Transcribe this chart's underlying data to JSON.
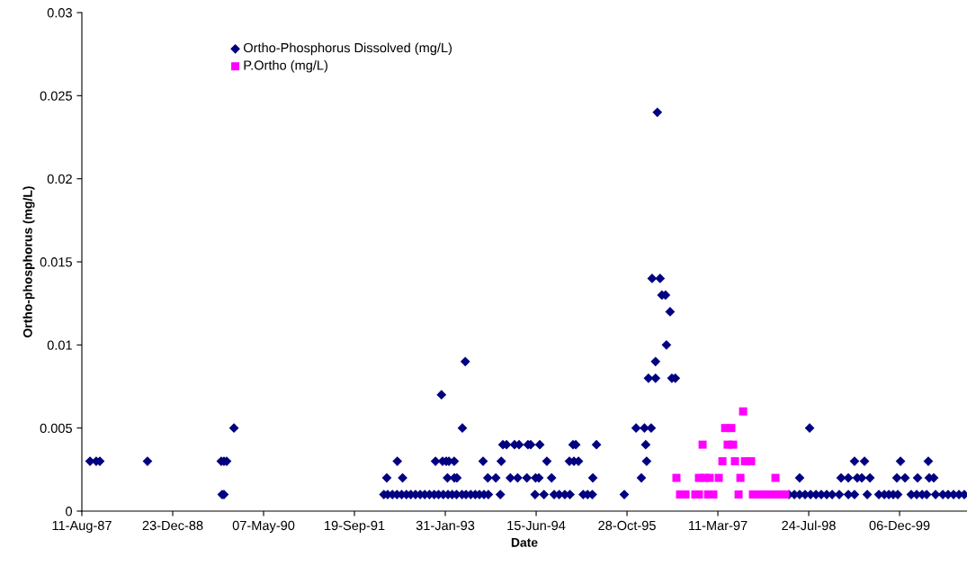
{
  "chart_data": {
    "type": "scatter",
    "xlabel": "Date",
    "ylabel": "Ortho-phosphorus (mg/L)",
    "xlim": [
      "1987-08-11",
      "2000-12-11"
    ],
    "xticks": [
      {
        "value": "1987-08-11",
        "label": "11-Aug-87"
      },
      {
        "value": "1988-12-23",
        "label": "23-Dec-88"
      },
      {
        "value": "1990-05-07",
        "label": "07-May-90"
      },
      {
        "value": "1991-09-19",
        "label": "19-Sep-91"
      },
      {
        "value": "1993-01-31",
        "label": "31-Jan-93"
      },
      {
        "value": "1994-06-15",
        "label": "15-Jun-94"
      },
      {
        "value": "1995-10-28",
        "label": "28-Oct-95"
      },
      {
        "value": "1997-03-11",
        "label": "11-Mar-97"
      },
      {
        "value": "1998-07-24",
        "label": "24-Jul-98"
      },
      {
        "value": "1999-12-06",
        "label": "06-Dec-99"
      }
    ],
    "ylim": [
      0,
      0.03
    ],
    "yticks": [
      0,
      0.005,
      0.01,
      0.015,
      0.02,
      0.025,
      0.03
    ],
    "grid": false,
    "legend": "top left",
    "series": [
      {
        "name": "Ortho-Phosphorus Dissolved (mg/L)",
        "color": "#000080",
        "marker": "diamond",
        "x": [
          "1987-09-25",
          "1987-10-29",
          "1987-11-18",
          "1988-08-06",
          "1989-09-16",
          "1989-10-01",
          "1989-10-16",
          "1989-09-21",
          "1989-10-01",
          "1989-11-25",
          "1992-02-28",
          "1992-03-20",
          "1992-04-15",
          "1992-05-10",
          "1992-06-05",
          "1992-07-01",
          "1992-07-25",
          "1992-08-20",
          "1992-09-15",
          "1992-10-10",
          "1992-11-05",
          "1992-12-01",
          "1992-12-25",
          "1993-01-20",
          "1993-02-15",
          "1993-03-10",
          "1993-04-03",
          "1993-05-03",
          "1993-05-25",
          "1993-06-20",
          "1993-07-15",
          "1993-08-07",
          "1993-09-01",
          "1993-09-25",
          "1993-11-30",
          "1994-06-09",
          "1994-07-28",
          "1994-09-22",
          "1994-10-20",
          "1994-11-20",
          "1994-12-18",
          "1995-03-01",
          "1995-03-25",
          "1995-04-20",
          "1995-10-13",
          "1992-03-15",
          "1992-06-10",
          "1993-02-12",
          "1993-03-22",
          "1993-04-05",
          "1993-09-22",
          "1993-11-05",
          "1994-01-24",
          "1994-03-05",
          "1994-04-25",
          "1994-06-12",
          "1994-06-30",
          "1994-09-08",
          "1995-04-23",
          "1996-01-15",
          "1992-05-12",
          "1992-12-08",
          "1993-01-16",
          "1993-02-05",
          "1993-02-20",
          "1993-03-21",
          "1993-08-27",
          "1993-12-05",
          "1994-08-13",
          "1994-12-15",
          "1995-01-09",
          "1995-02-03",
          "1996-02-13",
          "1993-12-14",
          "1994-01-03",
          "1994-02-16",
          "1994-03-13",
          "1994-05-01",
          "1994-05-16",
          "1994-07-05",
          "1995-01-04",
          "1995-01-19",
          "1995-05-13",
          "1996-02-08",
          "1993-05-05",
          "1995-12-17",
          "1996-02-01",
          "1996-03-09",
          "1993-01-10",
          "1993-05-21",
          "1996-02-23",
          "1996-03-14",
          "1996-04-02",
          "1996-04-02",
          "1996-04-12",
          "1996-04-27",
          "1996-05-07",
          "1996-05-27",
          "1996-06-01",
          "1996-06-21",
          "1996-07-01",
          "1996-07-20",
          "1998-04-06",
          "1998-05-06",
          "1998-06-04",
          "1998-07-04",
          "1998-08-03",
          "1998-09-02",
          "1998-10-01",
          "1998-10-31",
          "1998-11-30",
          "1999-01-08",
          "1999-02-27",
          "1999-04-02",
          "1999-06-11",
          "1999-08-14",
          "1999-09-13",
          "1999-10-08",
          "1999-11-01",
          "1999-11-26",
          "2000-02-08",
          "2000-03-09",
          "2000-04-08",
          "2000-05-03",
          "2000-06-21",
          "2000-07-31",
          "2000-08-29",
          "2000-09-28",
          "2000-10-28",
          "2000-11-26",
          "1998-06-04",
          "1999-01-18",
          "1999-02-27",
          "1999-04-17",
          "1999-05-12",
          "1999-06-26",
          "1999-11-21",
          "2000-01-05",
          "2000-03-14",
          "2000-05-17",
          "2000-06-11",
          "1999-04-02",
          "1999-05-27",
          "1999-12-11",
          "2000-05-12",
          "1998-07-29"
        ],
        "values": [
          0.003,
          0.003,
          0.003,
          0.003,
          0.003,
          0.003,
          0.003,
          0.001,
          0.001,
          0.005,
          0.001,
          0.001,
          0.001,
          0.001,
          0.001,
          0.001,
          0.001,
          0.001,
          0.001,
          0.001,
          0.001,
          0.001,
          0.001,
          0.001,
          0.001,
          0.001,
          0.001,
          0.001,
          0.001,
          0.001,
          0.001,
          0.001,
          0.001,
          0.001,
          0.001,
          0.001,
          0.001,
          0.001,
          0.001,
          0.001,
          0.001,
          0.001,
          0.001,
          0.001,
          0.001,
          0.002,
          0.002,
          0.002,
          0.002,
          0.002,
          0.002,
          0.002,
          0.002,
          0.002,
          0.002,
          0.002,
          0.002,
          0.002,
          0.002,
          0.002,
          0.003,
          0.003,
          0.003,
          0.003,
          0.003,
          0.003,
          0.003,
          0.003,
          0.003,
          0.003,
          0.003,
          0.003,
          0.003,
          0.004,
          0.004,
          0.004,
          0.004,
          0.004,
          0.004,
          0.004,
          0.004,
          0.004,
          0.004,
          0.004,
          0.005,
          0.005,
          0.005,
          0.005,
          0.007,
          0.009,
          0.008,
          0.014,
          0.008,
          0.009,
          0.024,
          0.014,
          0.013,
          0.013,
          0.01,
          0.012,
          0.008,
          0.008,
          0.001,
          0.001,
          0.001,
          0.001,
          0.001,
          0.001,
          0.001,
          0.001,
          0.001,
          0.001,
          0.001,
          0.001,
          0.001,
          0.001,
          0.001,
          0.001,
          0.001,
          0.001,
          0.001,
          0.001,
          0.001,
          0.001,
          0.001,
          0.001,
          0.001,
          0.001,
          0.001,
          0.001,
          0.002,
          0.002,
          0.002,
          0.002,
          0.002,
          0.002,
          0.002,
          0.002,
          0.002,
          0.002,
          0.002,
          0.003,
          0.003,
          0.003,
          0.003,
          0.005
        ]
      },
      {
        "name": "P.Ortho (mg/L)",
        "color": "#ff00ff",
        "marker": "square",
        "x": [
          "1996-07-26",
          "1996-08-15",
          "1996-09-14",
          "1996-11-07",
          "1996-11-27",
          "1996-11-27",
          "1996-12-17",
          "1996-12-27",
          "1997-01-16",
          "1997-01-25",
          "1997-02-14",
          "1997-03-16",
          "1997-04-05",
          "1997-04-20",
          "1997-05-04",
          "1997-05-24",
          "1997-06-03",
          "1997-06-13",
          "1997-07-03",
          "1997-07-13",
          "1997-07-28",
          "1997-08-07",
          "1997-09-10",
          "1997-09-20",
          "1997-10-20",
          "1997-11-18",
          "1997-12-18",
          "1998-01-17",
          "1998-01-22",
          "1998-02-16",
          "1998-03-17"
        ],
        "values": [
          0.002,
          0.001,
          0.001,
          0.001,
          0.001,
          0.002,
          0.004,
          0.002,
          0.001,
          0.002,
          0.001,
          0.002,
          0.003,
          0.005,
          0.004,
          0.005,
          0.004,
          0.003,
          0.001,
          0.002,
          0.006,
          0.003,
          0.003,
          0.001,
          0.001,
          0.001,
          0.001,
          0.001,
          0.002,
          0.001,
          0.001
        ]
      }
    ]
  }
}
